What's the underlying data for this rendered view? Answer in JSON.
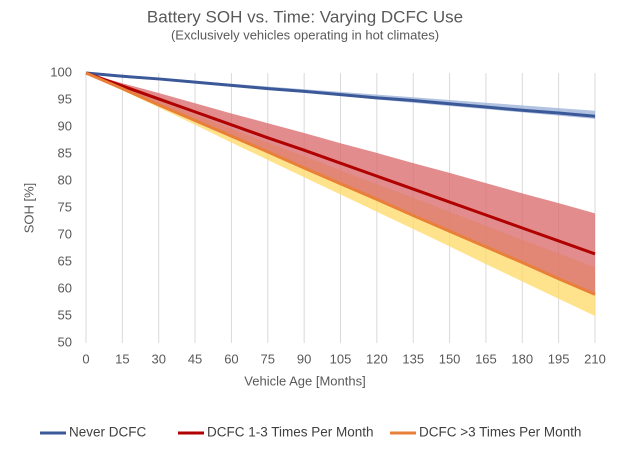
{
  "chart_data": {
    "type": "line",
    "title": "Battery SOH vs. Time: Varying DCFC Use",
    "subtitle": "(Exclusively vehicles operating in hot climates)",
    "x_label": "Vehicle Age [Months]",
    "y_label": "SOH [%]",
    "x": [
      0,
      15,
      30,
      45,
      60,
      75,
      90,
      105,
      120,
      135,
      150,
      165,
      180,
      195,
      210
    ],
    "xlim": [
      0,
      210
    ],
    "xticks": [
      0,
      15,
      30,
      45,
      60,
      75,
      90,
      105,
      120,
      135,
      150,
      165,
      180,
      195,
      210
    ],
    "ylim": [
      50,
      100
    ],
    "yticks": [
      50,
      55,
      60,
      65,
      70,
      75,
      80,
      85,
      90,
      95,
      100
    ],
    "xgrid": true,
    "legend": "bottom",
    "series": [
      {
        "name": "Never DCFC",
        "color": "#3b5998",
        "band_color": "#9fb3d9",
        "values": [
          100,
          99.4,
          98.9,
          98.3,
          97.7,
          97.1,
          96.6,
          96.0,
          95.4,
          94.9,
          94.3,
          93.7,
          93.1,
          92.6,
          92.0
        ],
        "band_upper": [
          100,
          99.5,
          99,
          98.5,
          98,
          97.5,
          97,
          96.5,
          96,
          95.5,
          95,
          94.5,
          94,
          93.5,
          93
        ],
        "band_lower": [
          100,
          99.4,
          98.8,
          98.2,
          97.6,
          97.0,
          96.4,
          95.8,
          95.1,
          94.5,
          93.9,
          93.3,
          92.7,
          92.1,
          91.5
        ]
      },
      {
        "name": "DCFC 1-3 Times Per Month",
        "color": "#b00000",
        "band_color": "#da6b6e",
        "values": [
          100,
          97.6,
          95.2,
          92.8,
          90.4,
          88.0,
          85.7,
          83.3,
          80.9,
          78.5,
          76.1,
          73.7,
          71.3,
          68.9,
          66.5
        ],
        "band_upper": [
          100,
          98.1,
          96.3,
          94.4,
          92.5,
          90.7,
          88.9,
          87.0,
          85.2,
          83.3,
          81.5,
          79.6,
          77.7,
          75.9,
          74.0
        ],
        "band_lower": [
          100,
          97.1,
          94.1,
          91.2,
          88.3,
          85.3,
          82.5,
          79.6,
          76.6,
          73.7,
          70.7,
          67.8,
          64.9,
          61.9,
          59.0
        ]
      },
      {
        "name": "DCFC >3 Times Per Month",
        "color": "#e8803a",
        "band_color": "#ffd966",
        "values": [
          100,
          97.1,
          94.1,
          91.2,
          88.3,
          85.4,
          82.4,
          79.5,
          76.6,
          73.6,
          70.7,
          67.8,
          64.9,
          61.9,
          59.0
        ],
        "band_upper": [
          100,
          97.4,
          94.9,
          92.3,
          89.7,
          87.1,
          84.6,
          82.0,
          79.4,
          76.9,
          74.3,
          71.7,
          69.1,
          66.6,
          64.0
        ],
        "band_lower": [
          100,
          96.8,
          93.6,
          90.4,
          87.1,
          83.9,
          80.7,
          77.5,
          74.3,
          71.1,
          67.9,
          64.6,
          61.4,
          58.2,
          55.0
        ]
      }
    ]
  }
}
